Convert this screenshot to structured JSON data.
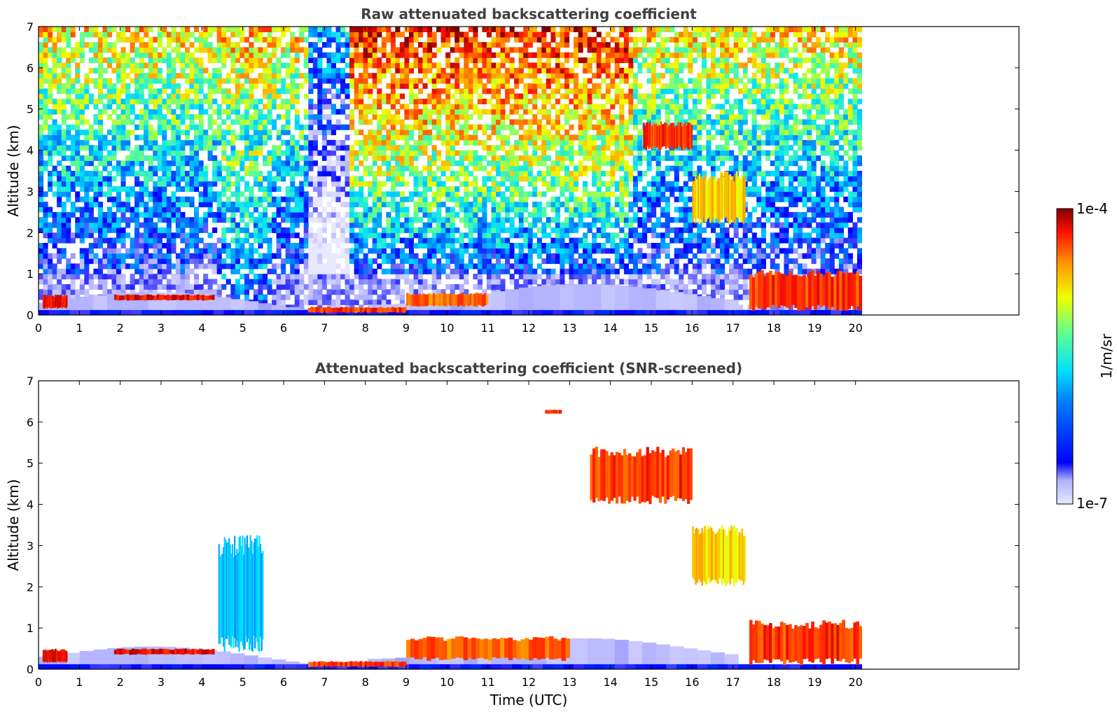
{
  "chart_data": [
    {
      "type": "heatmap",
      "title": "Raw attenuated backscattering coefficient",
      "xlabel": "",
      "ylabel": "Altitude (km)",
      "xlim": [
        0,
        24
      ],
      "ylim": [
        0,
        7
      ],
      "x_ticks": [
        "0",
        "1",
        "2",
        "3",
        "4",
        "5",
        "6",
        "7",
        "8",
        "9",
        "10",
        "11",
        "12",
        "13",
        "14",
        "15",
        "16",
        "17",
        "18",
        "19",
        "20"
      ],
      "y_ticks": [
        "0",
        "1",
        "2",
        "3",
        "4",
        "5",
        "6",
        "7"
      ],
      "data_end_time": 20.15,
      "features": [
        {
          "kind": "cloud_layer",
          "t": [
            0.1,
            0.7
          ],
          "alt": [
            0.15,
            0.5
          ],
          "level": 0.95
        },
        {
          "kind": "cloud_layer",
          "t": [
            1.85,
            4.3
          ],
          "alt": [
            0.35,
            0.5
          ],
          "level": 0.95
        },
        {
          "kind": "boundary_layer",
          "t": [
            6.6,
            9.0
          ],
          "alt": [
            0.05,
            0.2
          ],
          "level": 0.9
        },
        {
          "kind": "boundary_layer",
          "t": [
            9.0,
            11.0
          ],
          "alt": [
            0.2,
            0.55
          ],
          "level": 0.85
        },
        {
          "kind": "high_cloud",
          "t": [
            14.8,
            16.0
          ],
          "alt": [
            4.0,
            4.7
          ],
          "level": 0.9
        },
        {
          "kind": "cloud",
          "t": [
            16.0,
            17.3
          ],
          "alt": [
            2.2,
            3.5
          ],
          "level": 0.75
        },
        {
          "kind": "cloud_layer",
          "t": [
            17.4,
            20.15
          ],
          "alt": [
            0.1,
            1.1
          ],
          "level": 0.9
        }
      ]
    },
    {
      "type": "heatmap",
      "title": "Attenuated backscattering coefficient (SNR-screened)",
      "xlabel": "Time (UTC)",
      "ylabel": "Altitude (km)",
      "xlim": [
        0,
        24
      ],
      "ylim": [
        0,
        7
      ],
      "x_ticks": [
        "0",
        "1",
        "2",
        "3",
        "4",
        "5",
        "6",
        "7",
        "8",
        "9",
        "10",
        "11",
        "12",
        "13",
        "14",
        "15",
        "16",
        "17",
        "18",
        "19",
        "20"
      ],
      "y_ticks": [
        "0",
        "1",
        "2",
        "3",
        "4",
        "5",
        "6",
        "7"
      ],
      "data_end_time": 20.15,
      "features": [
        {
          "kind": "cloud_layer",
          "t": [
            0.1,
            0.7
          ],
          "alt": [
            0.15,
            0.5
          ],
          "level": 0.95
        },
        {
          "kind": "cloud_layer",
          "t": [
            1.85,
            4.3
          ],
          "alt": [
            0.35,
            0.5
          ],
          "level": 0.95
        },
        {
          "kind": "aerosol",
          "t": [
            4.4,
            5.5
          ],
          "alt": [
            0.4,
            3.3
          ],
          "level": 0.45
        },
        {
          "kind": "boundary_layer",
          "t": [
            6.6,
            9.0
          ],
          "alt": [
            0.05,
            0.2
          ],
          "level": 0.9
        },
        {
          "kind": "boundary_layer",
          "t": [
            9.0,
            13.0
          ],
          "alt": [
            0.2,
            0.8
          ],
          "level": 0.85
        },
        {
          "kind": "high_cloud",
          "t": [
            12.4,
            12.8
          ],
          "alt": [
            6.2,
            6.3
          ],
          "level": 0.9
        },
        {
          "kind": "high_cloud",
          "t": [
            13.5,
            16.0
          ],
          "alt": [
            4.0,
            5.4
          ],
          "level": 0.9
        },
        {
          "kind": "cloud",
          "t": [
            16.0,
            17.3
          ],
          "alt": [
            2.0,
            3.5
          ],
          "level": 0.75
        },
        {
          "kind": "cloud_layer",
          "t": [
            17.4,
            20.15
          ],
          "alt": [
            0.1,
            1.2
          ],
          "level": 0.9
        }
      ]
    }
  ],
  "colorbar": {
    "max_label": "1e-4",
    "min_label": "1e-7",
    "unit": "1/m/sr",
    "scale": "log",
    "range": [
      1e-07,
      0.0001
    ],
    "colormap": [
      "#e8e8ff",
      "#b0b0ff",
      "#0000ff",
      "#0080ff",
      "#00e0ff",
      "#60ff90",
      "#f0ff00",
      "#ff9000",
      "#ff1000",
      "#800000"
    ]
  }
}
